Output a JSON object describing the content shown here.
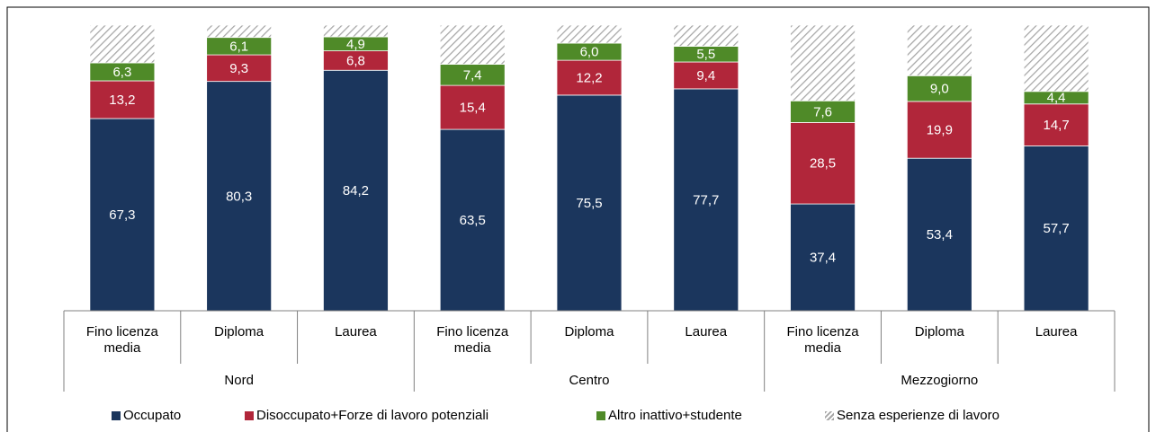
{
  "chart_data": {
    "type": "stacked_bar",
    "groups": [
      "Nord",
      "Centro",
      "Mezzogiorno"
    ],
    "categories": [
      "Fino licenza media",
      "Diploma",
      "Laurea",
      "Fino licenza media",
      "Diploma",
      "Laurea",
      "Fino licenza media",
      "Diploma",
      "Laurea"
    ],
    "series": [
      {
        "name": "Occupato",
        "color": "#1b365d",
        "values": [
          67.3,
          80.3,
          84.2,
          63.5,
          75.5,
          77.7,
          37.4,
          53.4,
          57.7
        ],
        "value_labels": [
          "67,3",
          "80,3",
          "84,2",
          "63,5",
          "75,5",
          "77,7",
          "37,4",
          "53,4",
          "57,7"
        ]
      },
      {
        "name": "Disoccupato+Forze di lavoro potenziali",
        "color": "#b1263a",
        "values": [
          13.2,
          9.3,
          6.8,
          15.4,
          12.2,
          9.4,
          28.5,
          19.9,
          14.7
        ],
        "value_labels": [
          "13,2",
          "9,3",
          "6,8",
          "15,4",
          "12,2",
          "9,4",
          "28,5",
          "19,9",
          "14,7"
        ]
      },
      {
        "name": "Altro inattivo+studente",
        "color": "#4f8a28",
        "values": [
          6.3,
          6.1,
          4.9,
          7.4,
          6.0,
          5.5,
          7.6,
          9.0,
          4.4
        ],
        "value_labels": [
          "6,3",
          "6,1",
          "4,9",
          "7,4",
          "6,0",
          "5,5",
          "7,6",
          "9,0",
          "4,4"
        ]
      },
      {
        "name": "Senza esperienze di lavoro",
        "color": "hatch",
        "values": [
          13.2,
          4.3,
          4.1,
          13.7,
          6.3,
          7.4,
          26.5,
          17.7,
          23.2
        ]
      }
    ]
  }
}
